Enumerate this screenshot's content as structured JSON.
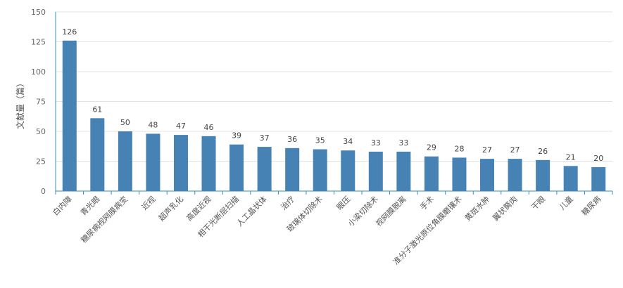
{
  "chart_data": {
    "type": "bar",
    "title": "",
    "xlabel": "",
    "ylabel": "文献量（篇）",
    "ylim": [
      0,
      150
    ],
    "yticks": [
      0,
      25,
      50,
      75,
      100,
      125,
      150
    ],
    "grid": true,
    "bar_color": "#4682b4",
    "categories": [
      "白内障",
      "青光眼",
      "糖尿病视网膜病变",
      "近视",
      "超声乳化",
      "高度近视",
      "相干光断层扫描",
      "人工晶状体",
      "治疗",
      "玻璃体切除术",
      "眼压",
      "小梁切除术",
      "视网膜脱离",
      "手术",
      "准分子激光原位角膜磨镶术",
      "黄斑水肿",
      "翼状胬肉",
      "干眼",
      "儿童",
      "糖尿病"
    ],
    "values": [
      126,
      61,
      50,
      48,
      47,
      46,
      39,
      37,
      36,
      35,
      34,
      33,
      33,
      29,
      28,
      27,
      27,
      26,
      21,
      20
    ]
  }
}
